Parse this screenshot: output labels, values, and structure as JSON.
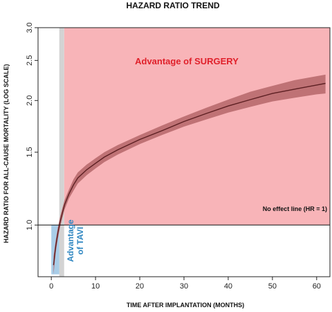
{
  "chart_data": {
    "type": "line",
    "title": "HAZARD RATIO TREND",
    "xlabel": "TIME AFTER IMPLANTATION (MONTHS)",
    "ylabel": "HAZARD RATIO FOR ALL-CAUSE MORTALITY (LOG SCALE)",
    "xlim": [
      -3,
      63
    ],
    "ylim": [
      0.75,
      3.0
    ],
    "yscale": "log",
    "x_ticks": [
      0,
      10,
      20,
      30,
      40,
      50,
      60
    ],
    "y_ticks": [
      1.0,
      1.5,
      2.0,
      2.5,
      3.0
    ],
    "y_tick_labels": [
      "1.0",
      "1.5",
      "2.0",
      "2.5",
      "3.0"
    ],
    "grid": false,
    "reference_line": {
      "y": 1.0,
      "label": "No effect line (HR = 1)"
    },
    "crossover_band": {
      "x": [
        1.8,
        2.9
      ]
    },
    "regions": {
      "surgery": {
        "label": "Advantage of SURGERY",
        "color": "#f8b4b8",
        "text_color": "#e0202a"
      },
      "tavi": {
        "label_line1": "Advantage",
        "label_line2": "of TAVI",
        "color": "#a9cde8",
        "text_color": "#2e86c1"
      }
    },
    "series": [
      {
        "x": [
          0.5,
          1,
          1.5,
          2,
          2.5,
          3,
          4,
          5,
          6,
          8,
          10,
          12,
          15,
          20,
          25,
          30,
          35,
          40,
          45,
          50,
          55,
          60,
          62
        ],
        "values": [
          0.8,
          0.89,
          0.96,
          1.02,
          1.07,
          1.12,
          1.19,
          1.25,
          1.3,
          1.36,
          1.41,
          1.46,
          1.52,
          1.61,
          1.69,
          1.78,
          1.86,
          1.94,
          2.01,
          2.08,
          2.13,
          2.18,
          2.2
        ],
        "lower": [
          0.76,
          0.86,
          0.93,
          0.99,
          1.04,
          1.09,
          1.16,
          1.21,
          1.26,
          1.32,
          1.37,
          1.42,
          1.48,
          1.57,
          1.65,
          1.73,
          1.8,
          1.87,
          1.93,
          1.99,
          2.03,
          2.07,
          2.08
        ],
        "upper": [
          0.84,
          0.92,
          0.99,
          1.05,
          1.1,
          1.15,
          1.22,
          1.29,
          1.34,
          1.4,
          1.45,
          1.5,
          1.56,
          1.65,
          1.74,
          1.83,
          1.92,
          2.01,
          2.1,
          2.17,
          2.24,
          2.29,
          2.31
        ]
      }
    ],
    "colors": {
      "line": "#5c1f22",
      "band": "#b86a6e",
      "crossover": "#d3d3d3",
      "frame": "#222222"
    }
  }
}
